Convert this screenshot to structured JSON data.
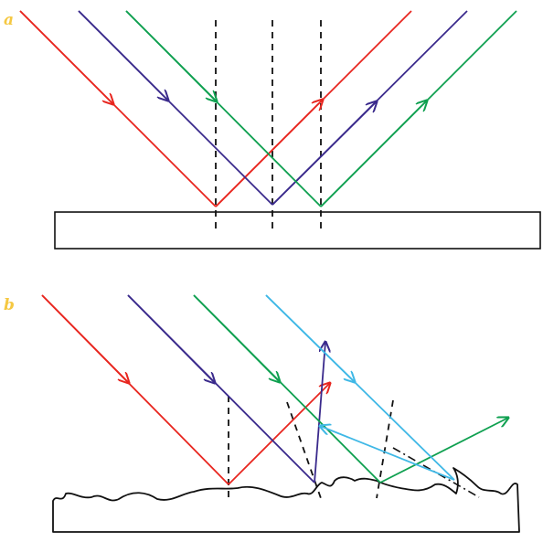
{
  "panels": {
    "a": {
      "label": "a"
    },
    "b": {
      "label": "b"
    }
  },
  "colors": {
    "label": "#f5c842",
    "ray_red": "#e8261f",
    "ray_navy": "#3a2a8c",
    "ray_green": "#0fa050",
    "ray_cyan": "#3fb8e6",
    "normal": "#111111",
    "surface": "#111111"
  }
}
